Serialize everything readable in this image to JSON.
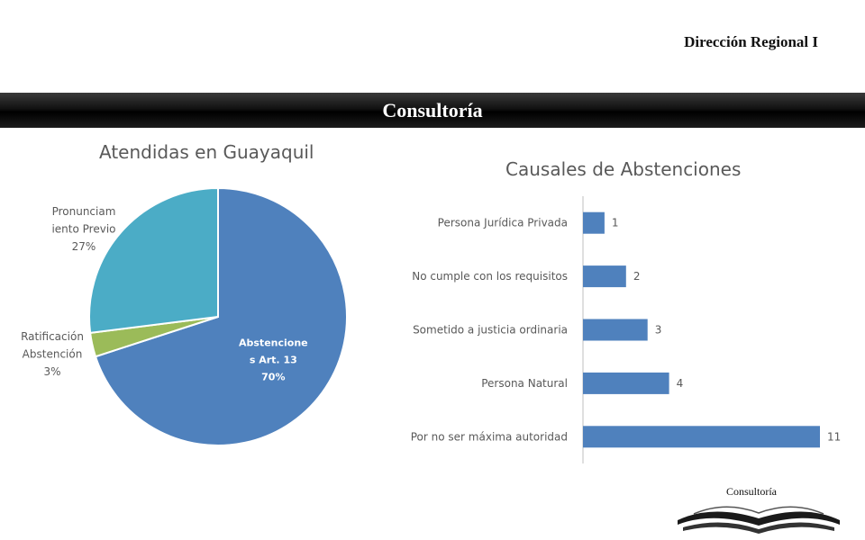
{
  "header": {
    "region": "Dirección Regional I",
    "banner": "Consultoría"
  },
  "footer": {
    "label": "Consultoría"
  },
  "colors": {
    "pie": [
      "#4f81bd",
      "#9bbb59",
      "#4bacc6"
    ],
    "bar": "#4f81bd",
    "text": "#595959"
  },
  "chart_data": [
    {
      "type": "pie",
      "title": "Atendidas en Guayaquil",
      "slices": [
        {
          "label_lines": [
            "Abstencione",
            "s Art. 13"
          ],
          "pct_label": "70%",
          "value": 70
        },
        {
          "label_lines": [
            "Ratificación",
            "Abstención"
          ],
          "pct_label": "3%",
          "value": 3
        },
        {
          "label_lines": [
            "Pronunciam",
            "iento Previo"
          ],
          "pct_label": "27%",
          "value": 27
        }
      ]
    },
    {
      "type": "bar",
      "orientation": "horizontal",
      "title": "Causales de Abstenciones",
      "categories": [
        "Persona Jurídica Privada",
        "No cumple con los requisitos",
        "Sometido a justicia ordinaria",
        "Persona Natural",
        "Por no ser máxima autoridad"
      ],
      "values": [
        1,
        2,
        3,
        4,
        11
      ]
    }
  ]
}
